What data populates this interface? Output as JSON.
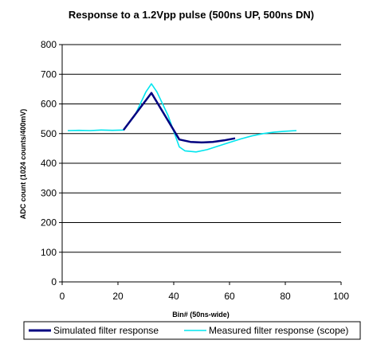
{
  "chart_data": {
    "type": "line",
    "title": "Response to a 1.2Vpp pulse (500ns UP, 500ns DN)",
    "xlabel": "Bin# (50ns-wide)",
    "ylabel": "ADC count (1024 counts/400mV)",
    "xlim": [
      0,
      100
    ],
    "ylim": [
      0,
      800
    ],
    "xticks": [
      0,
      20,
      40,
      60,
      80,
      100
    ],
    "yticks": [
      0,
      100,
      200,
      300,
      400,
      500,
      600,
      700,
      800
    ],
    "grid": "horizontal",
    "legend": "bottom",
    "series": [
      {
        "name": "Simulated filter response",
        "color": "#000080",
        "x": [
          22,
          32,
          42,
          46,
          50,
          54,
          58,
          62
        ],
        "y": [
          512,
          637,
          480,
          472,
          470,
          472,
          477,
          484
        ]
      },
      {
        "name": "Measured filter response (scope)",
        "color": "#00e5ee",
        "x": [
          2,
          6,
          10,
          14,
          18,
          22,
          26,
          30,
          32,
          34,
          38,
          42,
          44,
          48,
          52,
          56,
          60,
          64,
          68,
          72,
          76,
          80,
          84
        ],
        "y": [
          510,
          511,
          510,
          512,
          511,
          512,
          560,
          640,
          668,
          640,
          560,
          455,
          442,
          438,
          446,
          458,
          470,
          482,
          492,
          500,
          505,
          508,
          510
        ]
      }
    ]
  }
}
